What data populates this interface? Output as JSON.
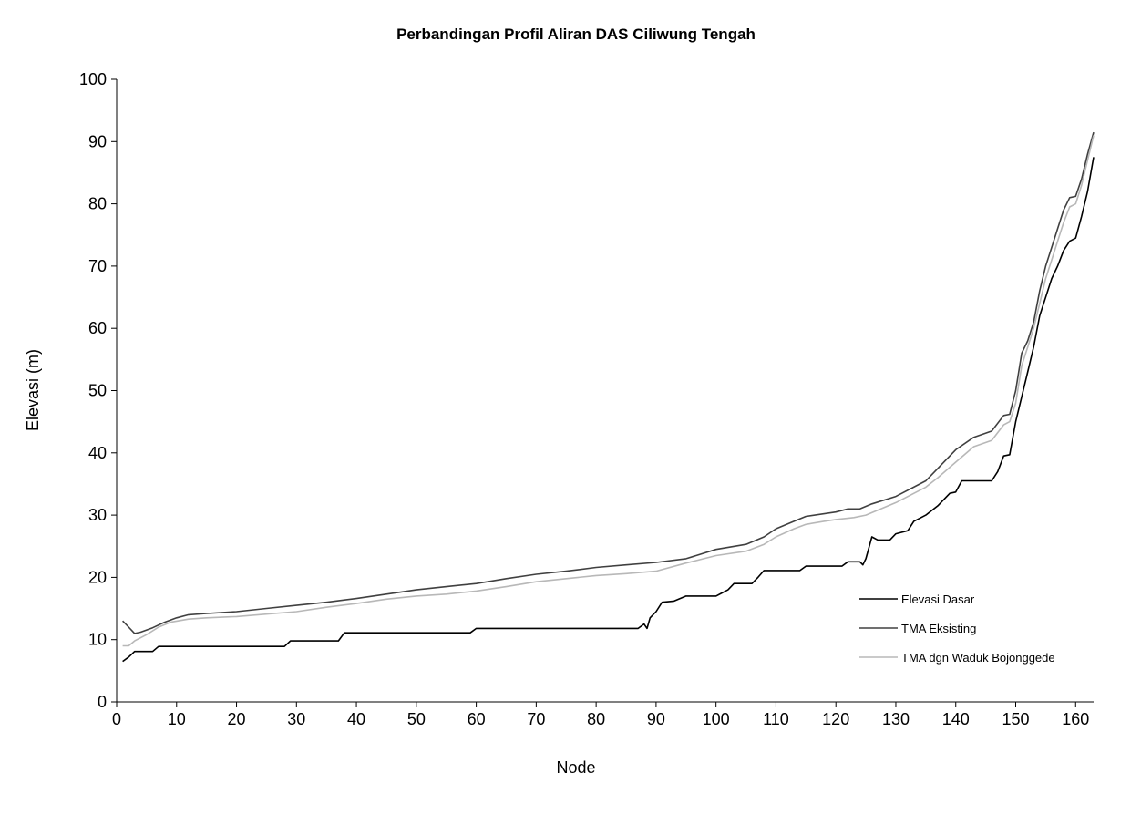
{
  "chart_data": {
    "type": "line",
    "title": "Perbandingan Profil Aliran DAS Ciliwung Tengah",
    "xlabel": "Node",
    "ylabel": "Elevasi (m)",
    "xlim": [
      0,
      163
    ],
    "ylim": [
      0,
      100
    ],
    "x_ticks": [
      "0",
      "10",
      "20",
      "30",
      "40",
      "50",
      "60",
      "70",
      "80",
      "90",
      "100",
      "110",
      "120",
      "130",
      "140",
      "150",
      "160"
    ],
    "y_ticks": [
      "0",
      "10",
      "20",
      "30",
      "40",
      "50",
      "60",
      "70",
      "80",
      "90",
      "100"
    ],
    "grid": false,
    "legend_position": "right",
    "series": [
      {
        "name": "Elevasi Dasar",
        "color": "#000000",
        "points": [
          [
            1,
            6.5
          ],
          [
            2,
            7.2
          ],
          [
            3,
            8.1
          ],
          [
            6,
            8.1
          ],
          [
            7,
            8.9
          ],
          [
            28,
            8.9
          ],
          [
            29,
            9.8
          ],
          [
            37,
            9.8
          ],
          [
            38,
            11.1
          ],
          [
            59,
            11.1
          ],
          [
            60,
            11.8
          ],
          [
            87,
            11.8
          ],
          [
            88,
            12.5
          ],
          [
            88.5,
            11.8
          ],
          [
            89,
            13.5
          ],
          [
            90,
            14.5
          ],
          [
            91,
            16
          ],
          [
            93,
            16.2
          ],
          [
            95,
            17
          ],
          [
            100,
            17
          ],
          [
            101,
            17.5
          ],
          [
            102,
            18
          ],
          [
            103,
            19
          ],
          [
            106,
            19
          ],
          [
            107,
            20
          ],
          [
            108,
            21.1
          ],
          [
            114,
            21.1
          ],
          [
            115,
            21.8
          ],
          [
            121,
            21.8
          ],
          [
            122,
            22.5
          ],
          [
            124,
            22.5
          ],
          [
            124.5,
            22
          ],
          [
            125,
            23
          ],
          [
            126,
            26.5
          ],
          [
            127,
            26
          ],
          [
            129,
            26
          ],
          [
            130,
            27
          ],
          [
            132,
            27.5
          ],
          [
            133,
            29
          ],
          [
            135,
            30
          ],
          [
            137,
            31.5
          ],
          [
            139,
            33.5
          ],
          [
            140,
            33.7
          ],
          [
            141,
            35.5
          ],
          [
            146,
            35.5
          ],
          [
            147,
            37
          ],
          [
            148,
            39.5
          ],
          [
            149,
            39.7
          ],
          [
            150,
            45
          ],
          [
            151,
            49
          ],
          [
            152,
            53
          ],
          [
            153,
            57
          ],
          [
            154,
            62
          ],
          [
            155,
            65
          ],
          [
            156,
            68
          ],
          [
            157,
            70
          ],
          [
            158,
            72.5
          ],
          [
            159,
            74
          ],
          [
            160,
            74.5
          ],
          [
            161,
            78
          ],
          [
            162,
            82
          ],
          [
            163,
            87.5
          ]
        ]
      },
      {
        "name": "TMA Eksisting",
        "color": "#404040",
        "points": [
          [
            1,
            13
          ],
          [
            2,
            12
          ],
          [
            3,
            11
          ],
          [
            4,
            11.2
          ],
          [
            6,
            11.9
          ],
          [
            8,
            12.8
          ],
          [
            10,
            13.5
          ],
          [
            12,
            14
          ],
          [
            15,
            14.2
          ],
          [
            20,
            14.5
          ],
          [
            25,
            15
          ],
          [
            30,
            15.5
          ],
          [
            35,
            16
          ],
          [
            40,
            16.6
          ],
          [
            45,
            17.3
          ],
          [
            50,
            18
          ],
          [
            55,
            18.5
          ],
          [
            60,
            19
          ],
          [
            65,
            19.8
          ],
          [
            70,
            20.5
          ],
          [
            75,
            21
          ],
          [
            80,
            21.6
          ],
          [
            85,
            22
          ],
          [
            90,
            22.4
          ],
          [
            95,
            23
          ],
          [
            100,
            24.5
          ],
          [
            105,
            25.3
          ],
          [
            108,
            26.5
          ],
          [
            110,
            27.8
          ],
          [
            113,
            29
          ],
          [
            115,
            29.8
          ],
          [
            120,
            30.5
          ],
          [
            122,
            31
          ],
          [
            124,
            31
          ],
          [
            126,
            31.8
          ],
          [
            130,
            33
          ],
          [
            135,
            35.5
          ],
          [
            137,
            37.5
          ],
          [
            140,
            40.5
          ],
          [
            143,
            42.5
          ],
          [
            146,
            43.5
          ],
          [
            148,
            46
          ],
          [
            149,
            46.2
          ],
          [
            150,
            50
          ],
          [
            151,
            56
          ],
          [
            152,
            58
          ],
          [
            153,
            61
          ],
          [
            154,
            66
          ],
          [
            155,
            70
          ],
          [
            156,
            73
          ],
          [
            157,
            76
          ],
          [
            158,
            79
          ],
          [
            159,
            81
          ],
          [
            160,
            81.2
          ],
          [
            161,
            84
          ],
          [
            162,
            88
          ],
          [
            163,
            91.5
          ]
        ]
      },
      {
        "name": "TMA dgn Waduk Bojonggede",
        "color": "#b8b8b8",
        "points": [
          [
            1,
            9
          ],
          [
            2,
            9
          ],
          [
            3,
            9.8
          ],
          [
            5,
            10.8
          ],
          [
            7,
            12
          ],
          [
            9,
            12.8
          ],
          [
            12,
            13.3
          ],
          [
            15,
            13.5
          ],
          [
            20,
            13.7
          ],
          [
            25,
            14.1
          ],
          [
            30,
            14.5
          ],
          [
            35,
            15.2
          ],
          [
            40,
            15.8
          ],
          [
            45,
            16.5
          ],
          [
            50,
            17
          ],
          [
            55,
            17.3
          ],
          [
            60,
            17.8
          ],
          [
            65,
            18.5
          ],
          [
            70,
            19.3
          ],
          [
            75,
            19.8
          ],
          [
            80,
            20.3
          ],
          [
            85,
            20.6
          ],
          [
            90,
            21
          ],
          [
            95,
            22.3
          ],
          [
            100,
            23.5
          ],
          [
            105,
            24.2
          ],
          [
            108,
            25.3
          ],
          [
            110,
            26.5
          ],
          [
            113,
            27.8
          ],
          [
            115,
            28.5
          ],
          [
            118,
            29
          ],
          [
            120,
            29.3
          ],
          [
            123,
            29.6
          ],
          [
            125,
            30
          ],
          [
            130,
            32
          ],
          [
            135,
            34.5
          ],
          [
            137,
            36
          ],
          [
            140,
            38.5
          ],
          [
            143,
            41
          ],
          [
            146,
            42
          ],
          [
            148,
            44.5
          ],
          [
            149,
            45
          ],
          [
            150,
            48
          ],
          [
            151,
            54
          ],
          [
            152,
            57
          ],
          [
            153,
            60
          ],
          [
            154,
            64
          ],
          [
            155,
            68
          ],
          [
            156,
            71
          ],
          [
            157,
            74
          ],
          [
            158,
            77
          ],
          [
            159,
            79.5
          ],
          [
            160,
            80
          ],
          [
            161,
            83
          ],
          [
            162,
            87
          ],
          [
            163,
            91
          ]
        ]
      }
    ]
  }
}
